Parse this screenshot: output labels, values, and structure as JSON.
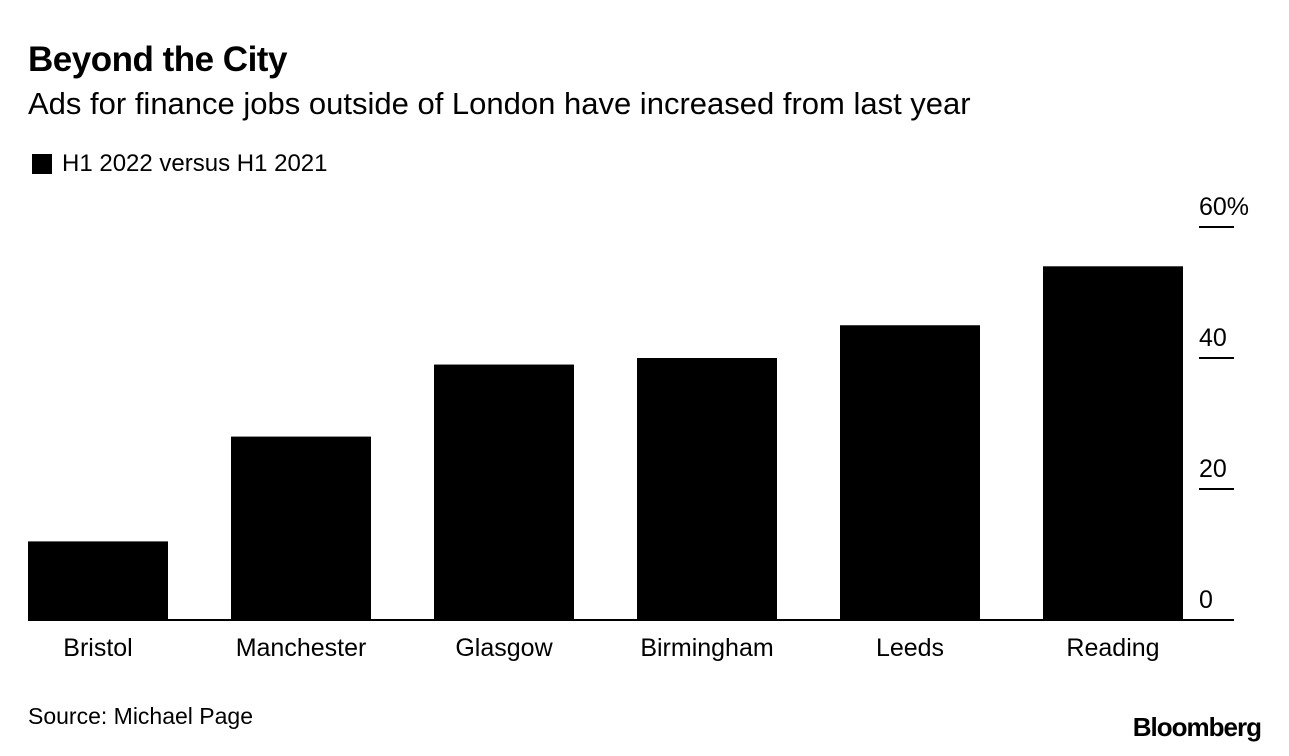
{
  "header": {
    "title": "Beyond the City",
    "subtitle": "Ads for finance jobs outside of London have increased from last year"
  },
  "legend": {
    "label": "H1 2022 versus H1 2021",
    "color": "#000000"
  },
  "footer": {
    "source": "Source: Michael Page",
    "logo": "Bloomberg"
  },
  "chart_data": {
    "type": "bar",
    "title": "Beyond the City",
    "subtitle": "Ads for finance jobs outside of London have increased from last year",
    "categories": [
      "Bristol",
      "Manchester",
      "Glasgow",
      "Birmingham",
      "Leeds",
      "Reading"
    ],
    "series": [
      {
        "name": "H1 2022 versus H1 2021",
        "color": "#000000",
        "values": [
          12,
          28,
          39,
          40,
          45,
          54
        ]
      }
    ],
    "ylim": [
      0,
      60
    ],
    "yticks": [
      0,
      20,
      40,
      60
    ],
    "ytick_labels": [
      "0",
      "20",
      "40",
      "60%"
    ],
    "y_axis_side": "right",
    "xlabel": "",
    "ylabel": "",
    "grid": false,
    "legend_position": "top-left"
  }
}
